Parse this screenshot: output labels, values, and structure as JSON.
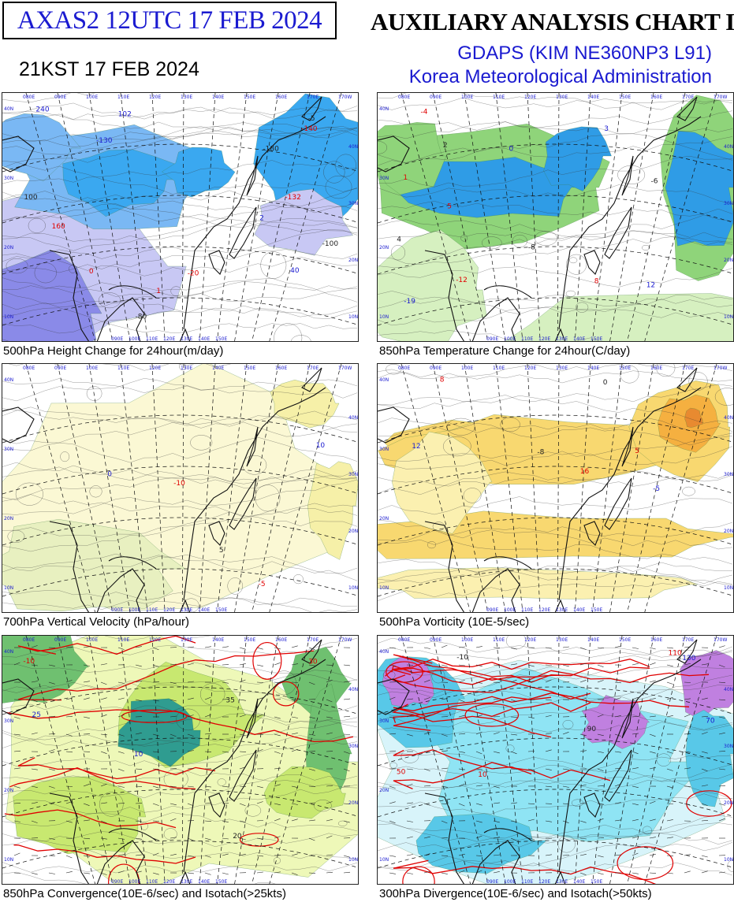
{
  "header": {
    "code_box": "AXAS2  12UTC 17 FEB 2024",
    "title": "AUXILIARY ANALYSIS CHART II",
    "model": "GDAPS (KIM NE360NP3 L91)",
    "agency": "Korea Meteorological Administration",
    "valid_time": "21KST 17 FEB 2024"
  },
  "map": {
    "lon_labels": [
      "080E",
      "090E",
      "100E",
      "110E",
      "120E",
      "130E",
      "140E",
      "150E",
      "160E",
      "170E",
      "170W"
    ],
    "lat_labels": [
      "40N",
      "30N",
      "20N",
      "10N"
    ],
    "right_lat_labels": [
      "40N",
      "30N",
      "20N",
      "10N"
    ]
  },
  "panels": [
    {
      "caption": "500hPa Height Change for 24hour(m/day)",
      "fill": "blue",
      "labels": [
        "-132",
        "102",
        "-80",
        "-20",
        "40",
        "100",
        "160",
        "240",
        "-180",
        "-140",
        "-130",
        "-100",
        "0",
        "2",
        "-5",
        "1"
      ]
    },
    {
      "caption": "850hPa Temperature Change for 24hour(C/day)",
      "fill": "green",
      "labels": [
        "-12",
        "-19",
        "-8",
        "-4",
        "0",
        "4",
        "8",
        "12",
        "-6",
        "5",
        "3",
        "2",
        "1"
      ]
    },
    {
      "caption": "700hPa Vertical Velocity (hPa/hour)",
      "fill": "yellow",
      "labels": [
        "-5",
        "0",
        "5",
        "-10",
        "10"
      ]
    },
    {
      "caption": "500hPa Vorticity (10E-5/sec)",
      "fill": "orange",
      "labels": [
        "8",
        "-5",
        "0",
        "5",
        "12",
        "-8",
        "16"
      ]
    },
    {
      "caption": "850hPa Convergence(10E-6/sec) and Isotach(>25kts)",
      "fill": "olive",
      "labels": [
        "30",
        "25",
        "35",
        "-10",
        "10",
        "20"
      ]
    },
    {
      "caption": "300hPa Divergence(10E-6/sec) and Isotach(>50kts)",
      "fill": "cyan",
      "labels": [
        "50",
        "70",
        "90",
        "110",
        "130",
        "-10",
        "10"
      ]
    }
  ],
  "colors": {
    "header_blue": "#1a1ad0",
    "isotach_red": "#e00000",
    "shading_blue": "#3aa8f0",
    "shading_green": "#8fd47a",
    "shading_yellow": "#f6f0a8",
    "shading_orange": "#f5b040",
    "shading_cyan": "#8fe4f4"
  }
}
